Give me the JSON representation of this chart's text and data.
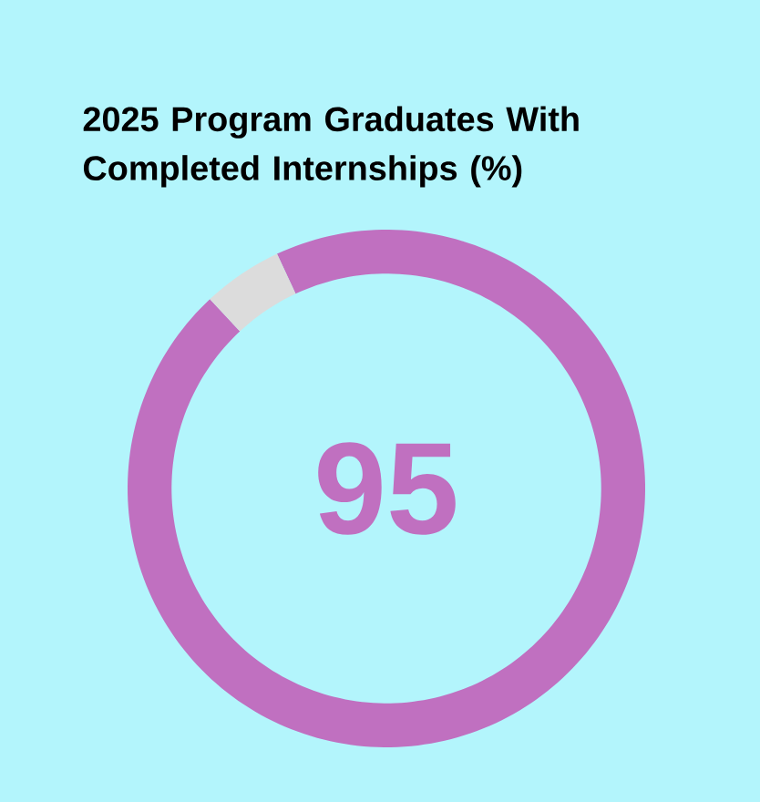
{
  "chart_data": {
    "type": "donut",
    "title": "2025 Program Graduates With Completed Internships (%)",
    "categories": [
      null,
      null
    ],
    "values": [
      95,
      5
    ],
    "colors": [
      "#c070c0",
      "#dcdcdc"
    ],
    "value_labels": [
      "95",
      null
    ]
  }
}
